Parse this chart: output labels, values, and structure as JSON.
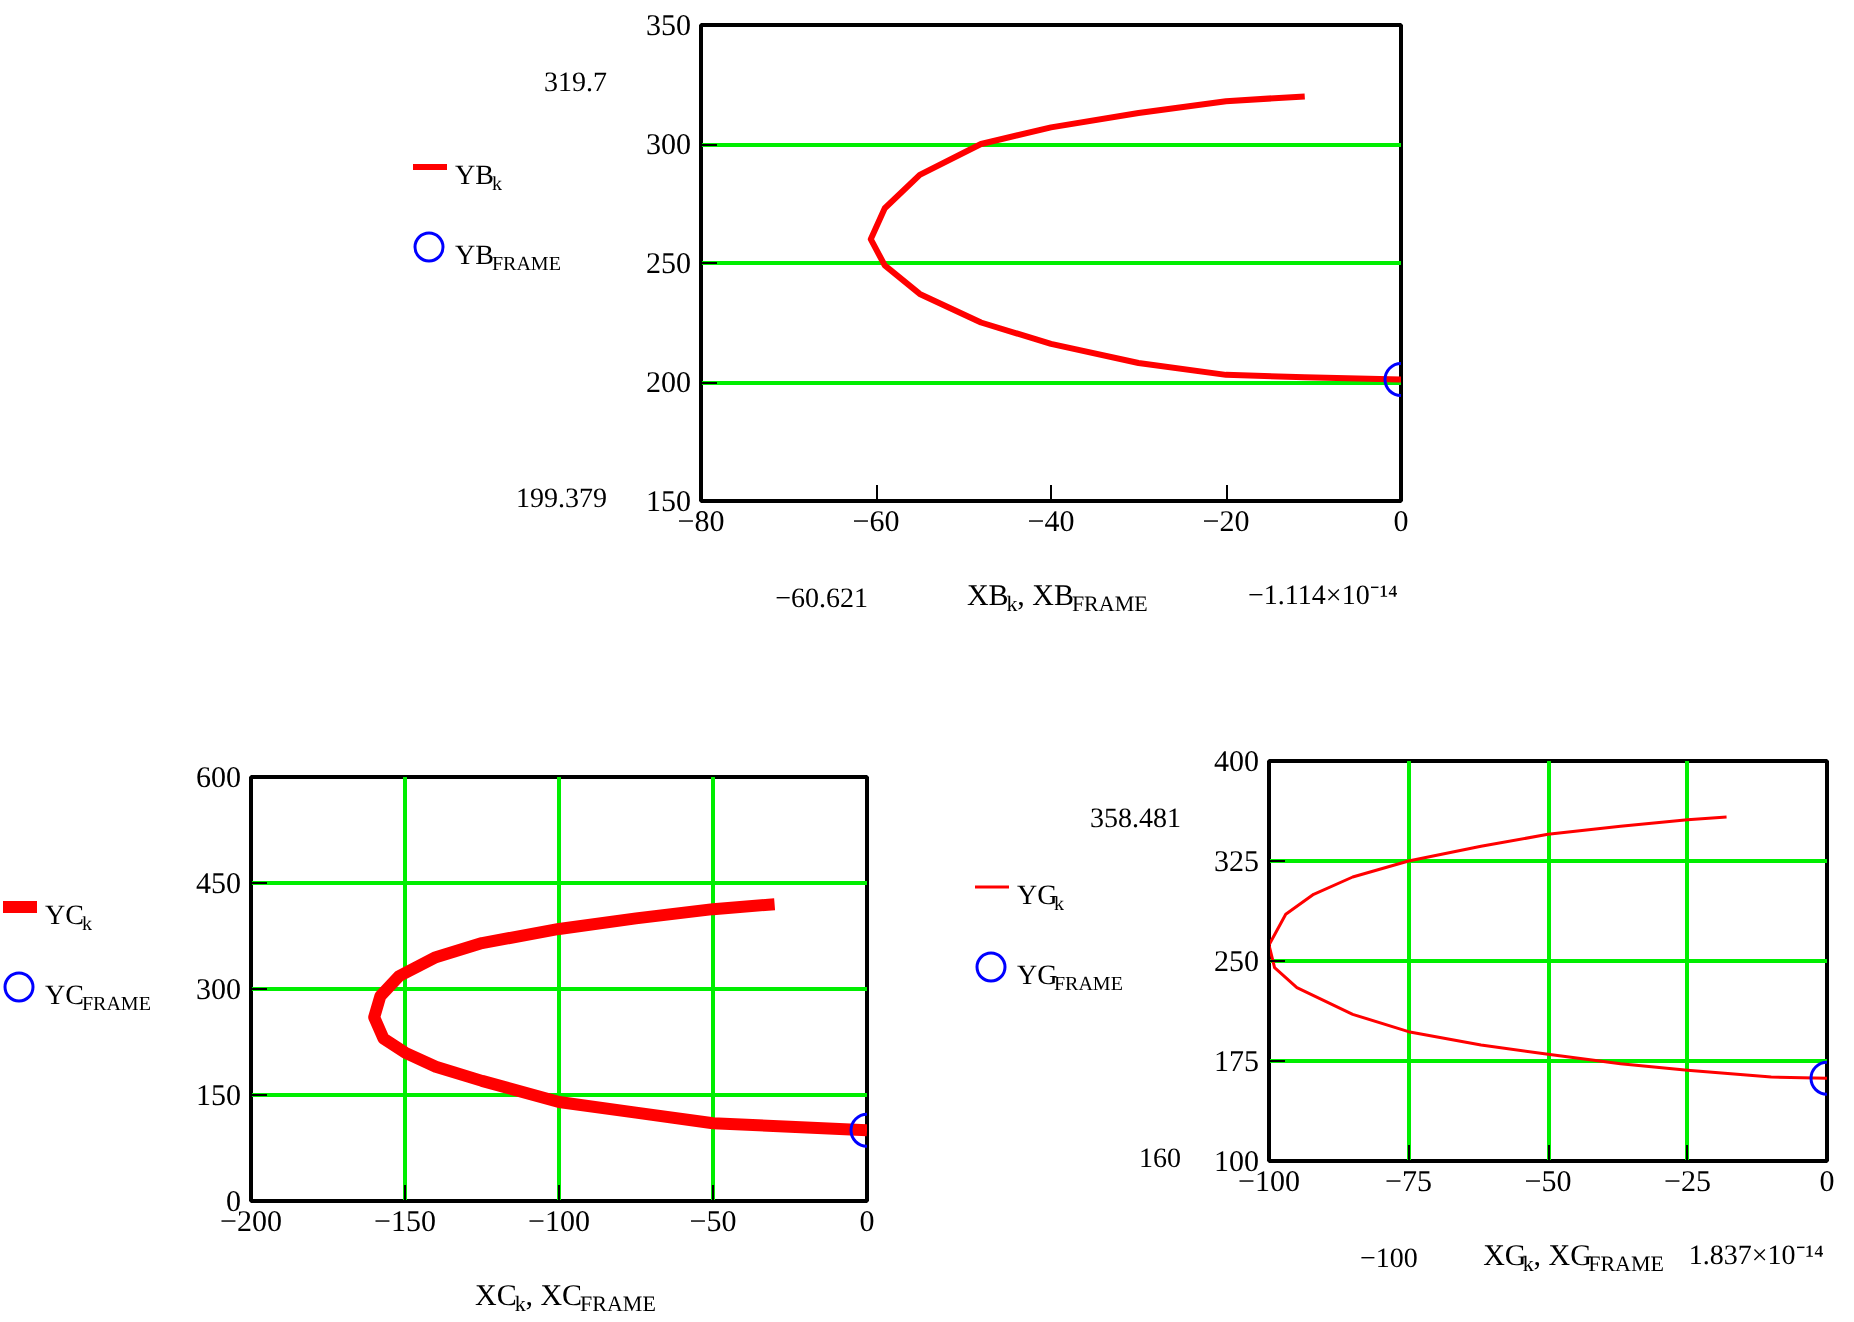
{
  "chart_data": [
    {
      "type": "line",
      "xlabel": "XB$_{k}$, XB$_{FRAME}$",
      "xlim": [
        -80,
        0
      ],
      "ylim": [
        150,
        350
      ],
      "xticks": [
        -80,
        -60,
        -40,
        -20,
        0
      ],
      "yticks": [
        150,
        200,
        250,
        300,
        350
      ],
      "grid": "y",
      "legend": "left",
      "annotations": [
        "319.7",
        "199.379",
        "−60.621",
        "−1.114×10⁻¹⁴"
      ],
      "series": [
        {
          "name": "YB$_{k}$",
          "color": "#ff0000",
          "x": [
            -11,
            -20,
            -30,
            -40,
            -48,
            -55,
            -59,
            -60.6,
            -59,
            -55,
            -48,
            -40,
            -30,
            -20,
            -11,
            0
          ],
          "values": [
            320,
            318,
            313,
            307,
            300,
            287,
            273,
            260,
            249,
            237,
            225,
            216,
            208,
            203,
            202,
            201
          ]
        },
        {
          "name": "YB$_{FRAME}$",
          "type": "scatter",
          "marker": "circle",
          "color": "#0000ff",
          "x": [
            0
          ],
          "values": [
            201
          ]
        }
      ]
    },
    {
      "type": "line",
      "xlabel": "XC$_{k}$, XC$_{FRAME}$",
      "xlim": [
        -200,
        0
      ],
      "ylim": [
        0,
        600
      ],
      "xticks": [
        -200,
        -150,
        -100,
        -50,
        0
      ],
      "yticks": [
        0,
        150,
        300,
        450,
        600
      ],
      "grid": true,
      "legend": "left",
      "series": [
        {
          "name": "YC$_{k}$",
          "color": "#ff0000",
          "x": [
            -30,
            -50,
            -75,
            -100,
            -125,
            -140,
            -152,
            -158,
            -160,
            -157,
            -150,
            -140,
            -125,
            -100,
            -75,
            -50,
            -25,
            0
          ],
          "values": [
            420,
            413,
            400,
            385,
            365,
            345,
            318,
            290,
            260,
            230,
            210,
            190,
            170,
            140,
            125,
            110,
            105,
            100
          ]
        },
        {
          "name": "YC$_{FRAME}$",
          "type": "scatter",
          "marker": "circle",
          "color": "#0000ff",
          "x": [
            0
          ],
          "values": [
            100
          ]
        }
      ]
    },
    {
      "type": "line",
      "xlabel": "XG$_{k}$, XG$_{FRAME}$",
      "xlim": [
        -100,
        0
      ],
      "ylim": [
        100,
        400
      ],
      "xticks": [
        -100,
        -75,
        -50,
        -25,
        0
      ],
      "yticks": [
        100,
        175,
        250,
        325,
        400
      ],
      "grid": true,
      "legend": "left",
      "annotations": [
        "358.481",
        "160",
        "−100",
        "1.837×10⁻¹⁴"
      ],
      "series": [
        {
          "name": "YG$_{k}$",
          "color": "#ff0000",
          "x": [
            -18,
            -25,
            -37,
            -50,
            -62,
            -75,
            -85,
            -92,
            -97,
            -100,
            -99,
            -95,
            -85,
            -75,
            -62,
            -50,
            -37,
            -25,
            -10,
            0
          ],
          "values": [
            358,
            356,
            351,
            345,
            336,
            325,
            313,
            300,
            285,
            262,
            245,
            230,
            210,
            197,
            187,
            180,
            173,
            168,
            163,
            162
          ]
        },
        {
          "name": "YG$_{FRAME}$",
          "type": "scatter",
          "marker": "circle",
          "color": "#0000ff",
          "x": [
            0
          ],
          "values": [
            162
          ]
        }
      ]
    }
  ]
}
